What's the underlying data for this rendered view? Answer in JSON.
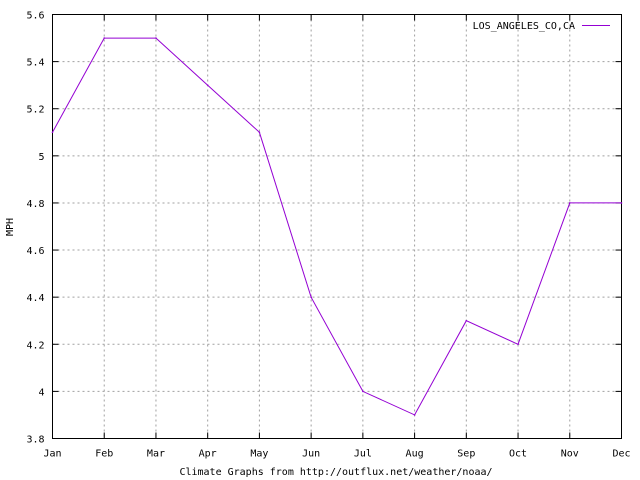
{
  "chart_data": {
    "type": "line",
    "categories": [
      "Jan",
      "Feb",
      "Mar",
      "Apr",
      "May",
      "Jun",
      "Jul",
      "Aug",
      "Sep",
      "Oct",
      "Nov",
      "Dec"
    ],
    "series": [
      {
        "name": "LOS_ANGELES_CO,CA",
        "color": "#9400d3",
        "values": [
          5.1,
          5.5,
          5.5,
          5.3,
          5.1,
          4.4,
          4.0,
          3.9,
          4.3,
          4.2,
          4.8,
          4.8
        ]
      }
    ],
    "ylabel": "MPH",
    "xlabel": "Climate Graphs from http://outflux.net/weather/noaa/",
    "ylim": [
      3.8,
      5.6
    ],
    "yticks": [
      "3.8",
      "4",
      "4.2",
      "4.4",
      "4.6",
      "4.8",
      "5",
      "5.2",
      "5.4",
      "5.6"
    ],
    "grid": true,
    "legend_position": "top-right"
  }
}
